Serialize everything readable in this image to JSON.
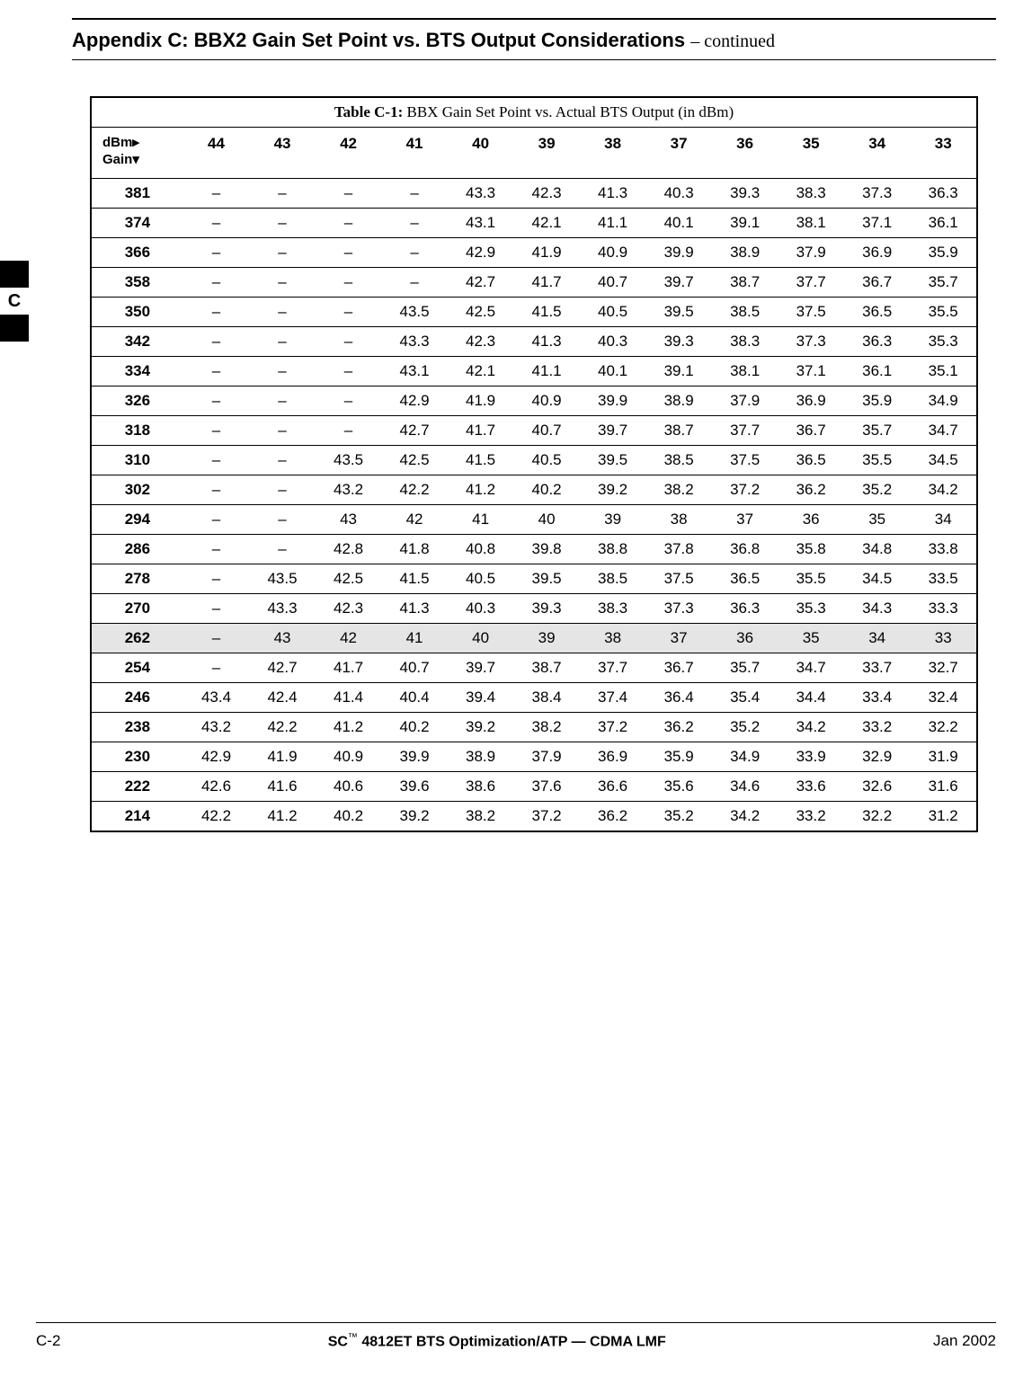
{
  "colors": {
    "text": "#000000",
    "background": "#ffffff",
    "highlight_row": "#e5e5e5",
    "border": "#000000"
  },
  "typography": {
    "sans": "Arial, Helvetica, sans-serif",
    "serif": "Times New Roman, Times, serif",
    "title_size_pt": 16,
    "body_size_pt": 12
  },
  "header": {
    "title_bold": "Appendix C: BBX2 Gain Set Point vs. BTS Output Considerations",
    "title_cont": " – continued"
  },
  "side_tab": {
    "label": "C"
  },
  "table": {
    "caption_bold": "Table C-1:",
    "caption_rest": " BBX Gain Set Point vs. Actual BTS Output (in dBm)",
    "corner_line1": "dBm▸",
    "corner_line2": "Gain▾",
    "dbm_columns": [
      "44",
      "43",
      "42",
      "41",
      "40",
      "39",
      "38",
      "37",
      "36",
      "35",
      "34",
      "33"
    ],
    "highlight_gain": "262",
    "rows": [
      {
        "gain": "381",
        "v": [
          "–",
          "–",
          "–",
          "–",
          "43.3",
          "42.3",
          "41.3",
          "40.3",
          "39.3",
          "38.3",
          "37.3",
          "36.3"
        ]
      },
      {
        "gain": "374",
        "v": [
          "–",
          "–",
          "–",
          "–",
          "43.1",
          "42.1",
          "41.1",
          "40.1",
          "39.1",
          "38.1",
          "37.1",
          "36.1"
        ]
      },
      {
        "gain": "366",
        "v": [
          "–",
          "–",
          "–",
          "–",
          "42.9",
          "41.9",
          "40.9",
          "39.9",
          "38.9",
          "37.9",
          "36.9",
          "35.9"
        ]
      },
      {
        "gain": "358",
        "v": [
          "–",
          "–",
          "–",
          "–",
          "42.7",
          "41.7",
          "40.7",
          "39.7",
          "38.7",
          "37.7",
          "36.7",
          "35.7"
        ]
      },
      {
        "gain": "350",
        "v": [
          "–",
          "–",
          "–",
          "43.5",
          "42.5",
          "41.5",
          "40.5",
          "39.5",
          "38.5",
          "37.5",
          "36.5",
          "35.5"
        ]
      },
      {
        "gain": "342",
        "v": [
          "–",
          "–",
          "–",
          "43.3",
          "42.3",
          "41.3",
          "40.3",
          "39.3",
          "38.3",
          "37.3",
          "36.3",
          "35.3"
        ]
      },
      {
        "gain": "334",
        "v": [
          "–",
          "–",
          "–",
          "43.1",
          "42.1",
          "41.1",
          "40.1",
          "39.1",
          "38.1",
          "37.1",
          "36.1",
          "35.1"
        ]
      },
      {
        "gain": "326",
        "v": [
          "–",
          "–",
          "–",
          "42.9",
          "41.9",
          "40.9",
          "39.9",
          "38.9",
          "37.9",
          "36.9",
          "35.9",
          "34.9"
        ]
      },
      {
        "gain": "318",
        "v": [
          "–",
          "–",
          "–",
          "42.7",
          "41.7",
          "40.7",
          "39.7",
          "38.7",
          "37.7",
          "36.7",
          "35.7",
          "34.7"
        ]
      },
      {
        "gain": "310",
        "v": [
          "–",
          "–",
          "43.5",
          "42.5",
          "41.5",
          "40.5",
          "39.5",
          "38.5",
          "37.5",
          "36.5",
          "35.5",
          "34.5"
        ]
      },
      {
        "gain": "302",
        "v": [
          "–",
          "–",
          "43.2",
          "42.2",
          "41.2",
          "40.2",
          "39.2",
          "38.2",
          "37.2",
          "36.2",
          "35.2",
          "34.2"
        ]
      },
      {
        "gain": "294",
        "v": [
          "–",
          "–",
          "43",
          "42",
          "41",
          "40",
          "39",
          "38",
          "37",
          "36",
          "35",
          "34"
        ]
      },
      {
        "gain": "286",
        "v": [
          "–",
          "–",
          "42.8",
          "41.8",
          "40.8",
          "39.8",
          "38.8",
          "37.8",
          "36.8",
          "35.8",
          "34.8",
          "33.8"
        ]
      },
      {
        "gain": "278",
        "v": [
          "–",
          "43.5",
          "42.5",
          "41.5",
          "40.5",
          "39.5",
          "38.5",
          "37.5",
          "36.5",
          "35.5",
          "34.5",
          "33.5"
        ]
      },
      {
        "gain": "270",
        "v": [
          "–",
          "43.3",
          "42.3",
          "41.3",
          "40.3",
          "39.3",
          "38.3",
          "37.3",
          "36.3",
          "35.3",
          "34.3",
          "33.3"
        ]
      },
      {
        "gain": "262",
        "v": [
          "–",
          "43",
          "42",
          "41",
          "40",
          "39",
          "38",
          "37",
          "36",
          "35",
          "34",
          "33"
        ]
      },
      {
        "gain": "254",
        "v": [
          "–",
          "42.7",
          "41.7",
          "40.7",
          "39.7",
          "38.7",
          "37.7",
          "36.7",
          "35.7",
          "34.7",
          "33.7",
          "32.7"
        ]
      },
      {
        "gain": "246",
        "v": [
          "43.4",
          "42.4",
          "41.4",
          "40.4",
          "39.4",
          "38.4",
          "37.4",
          "36.4",
          "35.4",
          "34.4",
          "33.4",
          "32.4"
        ]
      },
      {
        "gain": "238",
        "v": [
          "43.2",
          "42.2",
          "41.2",
          "40.2",
          "39.2",
          "38.2",
          "37.2",
          "36.2",
          "35.2",
          "34.2",
          "33.2",
          "32.2"
        ]
      },
      {
        "gain": "230",
        "v": [
          "42.9",
          "41.9",
          "40.9",
          "39.9",
          "38.9",
          "37.9",
          "36.9",
          "35.9",
          "34.9",
          "33.9",
          "32.9",
          "31.9"
        ]
      },
      {
        "gain": "222",
        "v": [
          "42.6",
          "41.6",
          "40.6",
          "39.6",
          "38.6",
          "37.6",
          "36.6",
          "35.6",
          "34.6",
          "33.6",
          "32.6",
          "31.6"
        ]
      },
      {
        "gain": "214",
        "v": [
          "42.2",
          "41.2",
          "40.2",
          "39.2",
          "38.2",
          "37.2",
          "36.2",
          "35.2",
          "34.2",
          "33.2",
          "32.2",
          "31.2"
        ]
      }
    ]
  },
  "footer": {
    "left": "C-2",
    "center_prefix": "SC",
    "center_tm": "™",
    "center_rest": "4812ET BTS Optimization/ATP — CDMA LMF",
    "right": "Jan 2002"
  }
}
